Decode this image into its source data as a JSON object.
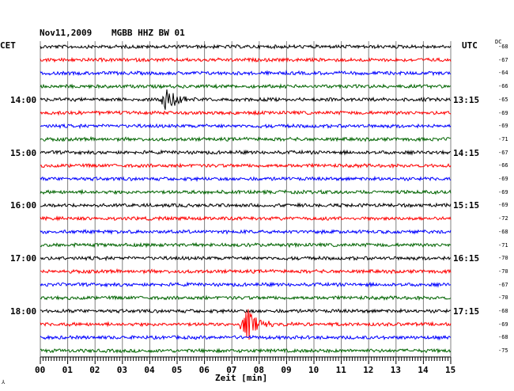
{
  "header": {
    "date": "Nov11,2009",
    "station": "MGBB HHZ BW 01"
  },
  "left_zone_label": "CET",
  "right_zone_label": "UTC",
  "dc_label": "DC",
  "xaxis_label": "Zeit [min]",
  "corner_mark": "⅄",
  "chart_data": {
    "type": "line",
    "title": "Nov11,2009   MGBB HHZ BW 01",
    "xlabel": "Zeit [min]",
    "xlim": [
      0,
      15
    ],
    "x_ticks": [
      "00",
      "01",
      "02",
      "03",
      "04",
      "05",
      "06",
      "07",
      "08",
      "09",
      "10",
      "11",
      "12",
      "13",
      "14",
      "15"
    ],
    "trace_count": 24,
    "trace_colors": [
      "#000000",
      "#ff0000",
      "#0000ff",
      "#006400"
    ],
    "left_labels": [
      {
        "trace": 4,
        "text": "14:00"
      },
      {
        "trace": 8,
        "text": "15:00"
      },
      {
        "trace": 12,
        "text": "16:00"
      },
      {
        "trace": 16,
        "text": "17:00"
      },
      {
        "trace": 20,
        "text": "18:00"
      }
    ],
    "right_labels": [
      {
        "trace": 4,
        "text": "13:15"
      },
      {
        "trace": 8,
        "text": "14:15"
      },
      {
        "trace": 12,
        "text": "15:15"
      },
      {
        "trace": 16,
        "text": "16:15"
      },
      {
        "trace": 20,
        "text": "17:15"
      }
    ],
    "dc_values": [
      "-68",
      "-67",
      "-64",
      "-66",
      "-65",
      "-69",
      "-69",
      "-71",
      "-67",
      "-66",
      "-69",
      "-69",
      "-69",
      "-72",
      "-68",
      "-71",
      "-70",
      "-70",
      "-67",
      "-70",
      "-68",
      "-69",
      "-68",
      "-75"
    ],
    "events": [
      {
        "trace": 4,
        "minute": 4.7,
        "amplitude": 0.85
      },
      {
        "trace": 21,
        "minute": 7.6,
        "amplitude": 1.0
      }
    ],
    "grid": true
  }
}
